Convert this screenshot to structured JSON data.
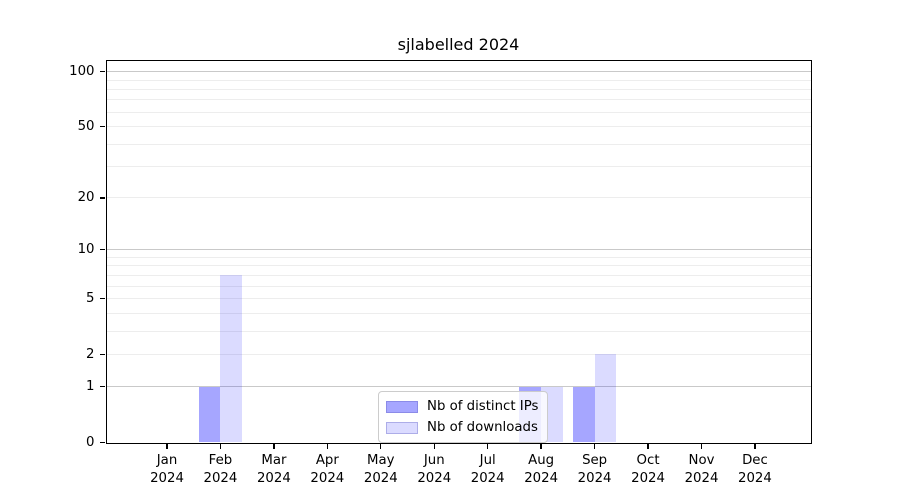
{
  "chart_data": {
    "type": "bar",
    "title": "sjlabelled 2024",
    "categories": [
      "Jan 2024",
      "Feb 2024",
      "Mar 2024",
      "Apr 2024",
      "May 2024",
      "Jun 2024",
      "Jul 2024",
      "Aug 2024",
      "Sep 2024",
      "Oct 2024",
      "Nov 2024",
      "Dec 2024"
    ],
    "series": [
      {
        "name": "Nb of distinct IPs",
        "color": "#0000FF59",
        "values": [
          0,
          1,
          0,
          0,
          0,
          0,
          0,
          1,
          1,
          0,
          0,
          0
        ]
      },
      {
        "name": "Nb of downloads",
        "color": "#0000FF24",
        "values": [
          0,
          7,
          0,
          0,
          0,
          0,
          0,
          1,
          2,
          0,
          0,
          0
        ]
      }
    ],
    "yscale": "log1p",
    "ylim": [
      0,
      115
    ],
    "yticks": {
      "labels": [
        "0",
        "1",
        "2",
        "5",
        "10",
        "20",
        "50",
        "100"
      ],
      "labeled_values": [
        0,
        1,
        2,
        5,
        10,
        20,
        50,
        100
      ],
      "grid_major": [
        1,
        10,
        100
      ],
      "grid_minor": [
        2,
        3,
        4,
        5,
        6,
        7,
        8,
        9,
        20,
        30,
        40,
        50,
        60,
        70,
        80,
        90
      ]
    },
    "xlabel": "",
    "ylabel": "",
    "grid": true,
    "legend_position": "lower-center-inside",
    "colors": {
      "grid_major": "#c9c9c9",
      "grid_minor": "#ededed",
      "axis": "#000000",
      "background": "#ffffff"
    }
  }
}
